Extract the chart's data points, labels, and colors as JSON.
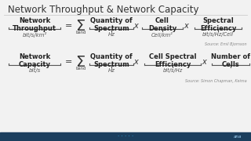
{
  "title": "Network Throughput & Network Capacity",
  "bg_color": "#f2f2f2",
  "title_color": "#333333",
  "top_row": {
    "label": "Network\nThroughput",
    "unit": "bit/s/km²",
    "terms": [
      {
        "text": "Quantity of\nSpectrum",
        "unit": "Hz"
      },
      {
        "text": "Cell\nDensity",
        "unit": "Cell/km²"
      },
      {
        "text": "Spectral\nEfficiency",
        "unit": "bit/s/Hz/Cell"
      }
    ],
    "source": "Source: Emil Bjornson"
  },
  "bottom_row": {
    "label": "Network\nCapacity",
    "unit": "bit/s",
    "terms": [
      {
        "text": "Quantity of\nSpectrum",
        "unit": "Hz"
      },
      {
        "text": "Cell Spectral\nEfficiency",
        "unit": "bit/s/Hz"
      },
      {
        "text": "Number of\nCells",
        "unit": ""
      }
    ],
    "source": "Source: Simon Chapman, Keima"
  },
  "footer_bg": "#1c3f5e",
  "footer_accent": "#29abe2"
}
